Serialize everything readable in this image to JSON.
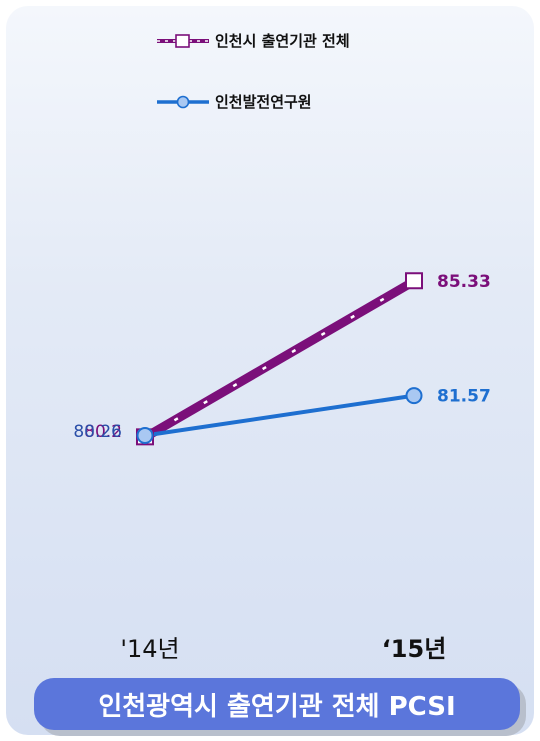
{
  "chart_data": {
    "type": "line",
    "categories": [
      "'14년",
      "‘15년"
    ],
    "series": [
      {
        "name": "인천시 출연기관 전체",
        "values": [
          80.2,
          85.33
        ],
        "labels": [
          "80.2",
          "85.33"
        ],
        "color": "#7b0f7a",
        "marker": "square",
        "dashed": true
      },
      {
        "name": "인천발전연구원",
        "values": [
          80.26,
          81.57
        ],
        "labels": [
          "80.26",
          "81.57"
        ],
        "color": "#1e6fd0",
        "marker": "circle",
        "dashed": false
      }
    ],
    "ylim": [
      74,
      88
    ],
    "xlabel": "",
    "ylabel": "",
    "grid": false,
    "legend": "top"
  },
  "footer": {
    "title": "인천광역시 출연기관 전체 PCSI"
  }
}
